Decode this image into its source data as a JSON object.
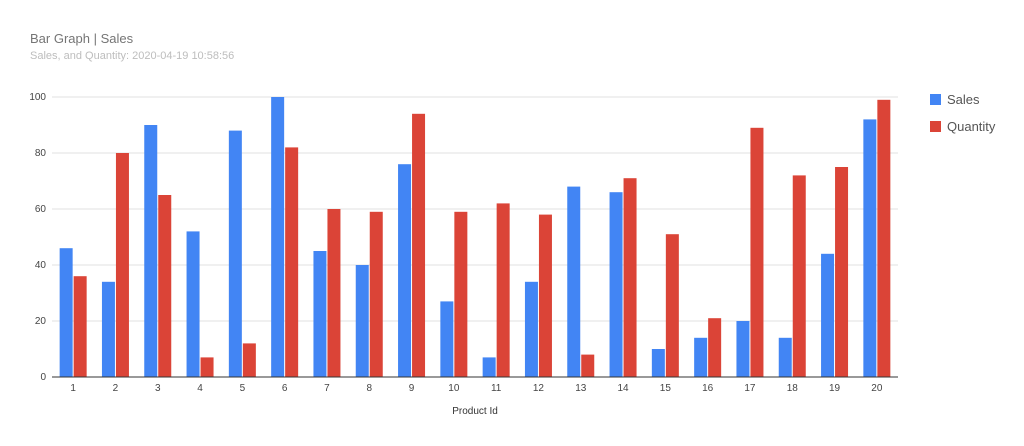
{
  "chart_data": {
    "type": "bar",
    "title": "Bar Graph | Sales",
    "subtitle": "Sales, and Quantity: 2020-04-19 10:58:56",
    "xlabel": "Product Id",
    "ylabel": "",
    "ylim": [
      0,
      100
    ],
    "yticks": [
      "0",
      "20",
      "40",
      "60",
      "80",
      "100"
    ],
    "grid": true,
    "legend_position": "right",
    "categories": [
      "1",
      "2",
      "3",
      "4",
      "5",
      "6",
      "7",
      "8",
      "9",
      "10",
      "11",
      "12",
      "13",
      "14",
      "15",
      "16",
      "17",
      "18",
      "19",
      "20"
    ],
    "series": [
      {
        "name": "Sales",
        "color": "#4285f4",
        "values": [
          46,
          34,
          90,
          52,
          88,
          100,
          45,
          40,
          76,
          27,
          7,
          34,
          68,
          66,
          10,
          14,
          20,
          14,
          44,
          92
        ]
      },
      {
        "name": "Quantity",
        "color": "#db4437",
        "values": [
          36,
          80,
          65,
          7,
          12,
          82,
          60,
          59,
          94,
          59,
          62,
          58,
          8,
          71,
          51,
          21,
          89,
          72,
          75,
          99
        ]
      }
    ]
  }
}
